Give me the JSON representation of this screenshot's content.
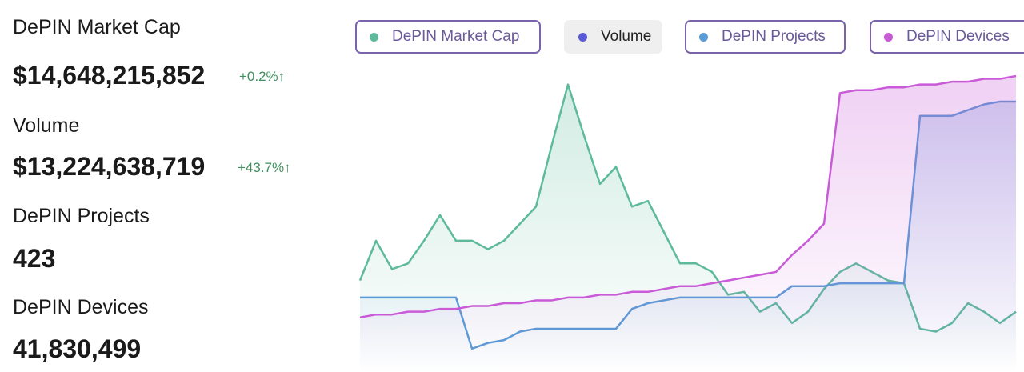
{
  "stats": [
    {
      "label": "DePIN Market Cap",
      "value": "$14,648,215,852",
      "change": "+0.2%↑"
    },
    {
      "label": "Volume",
      "value": "$13,224,638,719",
      "change": "+43.7%↑"
    },
    {
      "label": "DePIN Projects",
      "value": "423"
    },
    {
      "label": "DePIN Devices",
      "value": "41,830,499"
    }
  ],
  "chart_data": {
    "type": "line",
    "categories": [
      null,
      null,
      null,
      null,
      null,
      null,
      null,
      null,
      null,
      null,
      null,
      null,
      null,
      null,
      null,
      null,
      null,
      null,
      null,
      null,
      null,
      null,
      null,
      null,
      null,
      null,
      null,
      null,
      null,
      null,
      null,
      null,
      null,
      null,
      null,
      null,
      null,
      null,
      null,
      null,
      null,
      null
    ],
    "ylim": [
      0,
      100
    ],
    "series": [
      {
        "name": "DePIN Market Cap",
        "color": "#5dba9c",
        "visible": true,
        "values": [
          28,
          42,
          32,
          34,
          42,
          51,
          42,
          42,
          39,
          42,
          48,
          54,
          76,
          97,
          79,
          62,
          68,
          54,
          56,
          45,
          34,
          34,
          31,
          23,
          24,
          17,
          20,
          13,
          17,
          25,
          31,
          34,
          31,
          28,
          27,
          11,
          10,
          13,
          20,
          17,
          13,
          17
        ]
      },
      {
        "name": "Volume",
        "color": "#5a5ad8",
        "visible": false,
        "values": [
          null,
          null,
          null,
          null,
          null,
          null,
          null,
          null,
          null,
          null,
          null,
          null,
          null,
          null,
          null,
          null,
          null,
          null,
          null,
          null,
          null,
          null,
          null,
          null,
          null,
          null,
          null,
          null,
          null,
          null,
          null,
          null,
          null,
          null,
          null,
          null,
          null,
          null,
          null,
          null,
          null,
          null
        ]
      },
      {
        "name": "DePIN Projects",
        "color": "#5b9bd5",
        "visible": true,
        "values": [
          22,
          22,
          22,
          22,
          22,
          22,
          22,
          4,
          6,
          7,
          10,
          11,
          11,
          11,
          11,
          11,
          11,
          18,
          20,
          21,
          22,
          22,
          22,
          22,
          22,
          22,
          22,
          26,
          26,
          26,
          27,
          27,
          27,
          27,
          27,
          86,
          86,
          86,
          88,
          90,
          91,
          91
        ]
      },
      {
        "name": "DePIN Devices",
        "color": "#c95ad8",
        "visible": true,
        "values": [
          15,
          16,
          16,
          17,
          17,
          18,
          18,
          19,
          19,
          20,
          20,
          21,
          21,
          22,
          22,
          23,
          23,
          24,
          24,
          25,
          26,
          26,
          27,
          28,
          29,
          30,
          31,
          37,
          42,
          48,
          94,
          95,
          95,
          96,
          96,
          97,
          97,
          98,
          98,
          99,
          99,
          100
        ]
      }
    ]
  }
}
